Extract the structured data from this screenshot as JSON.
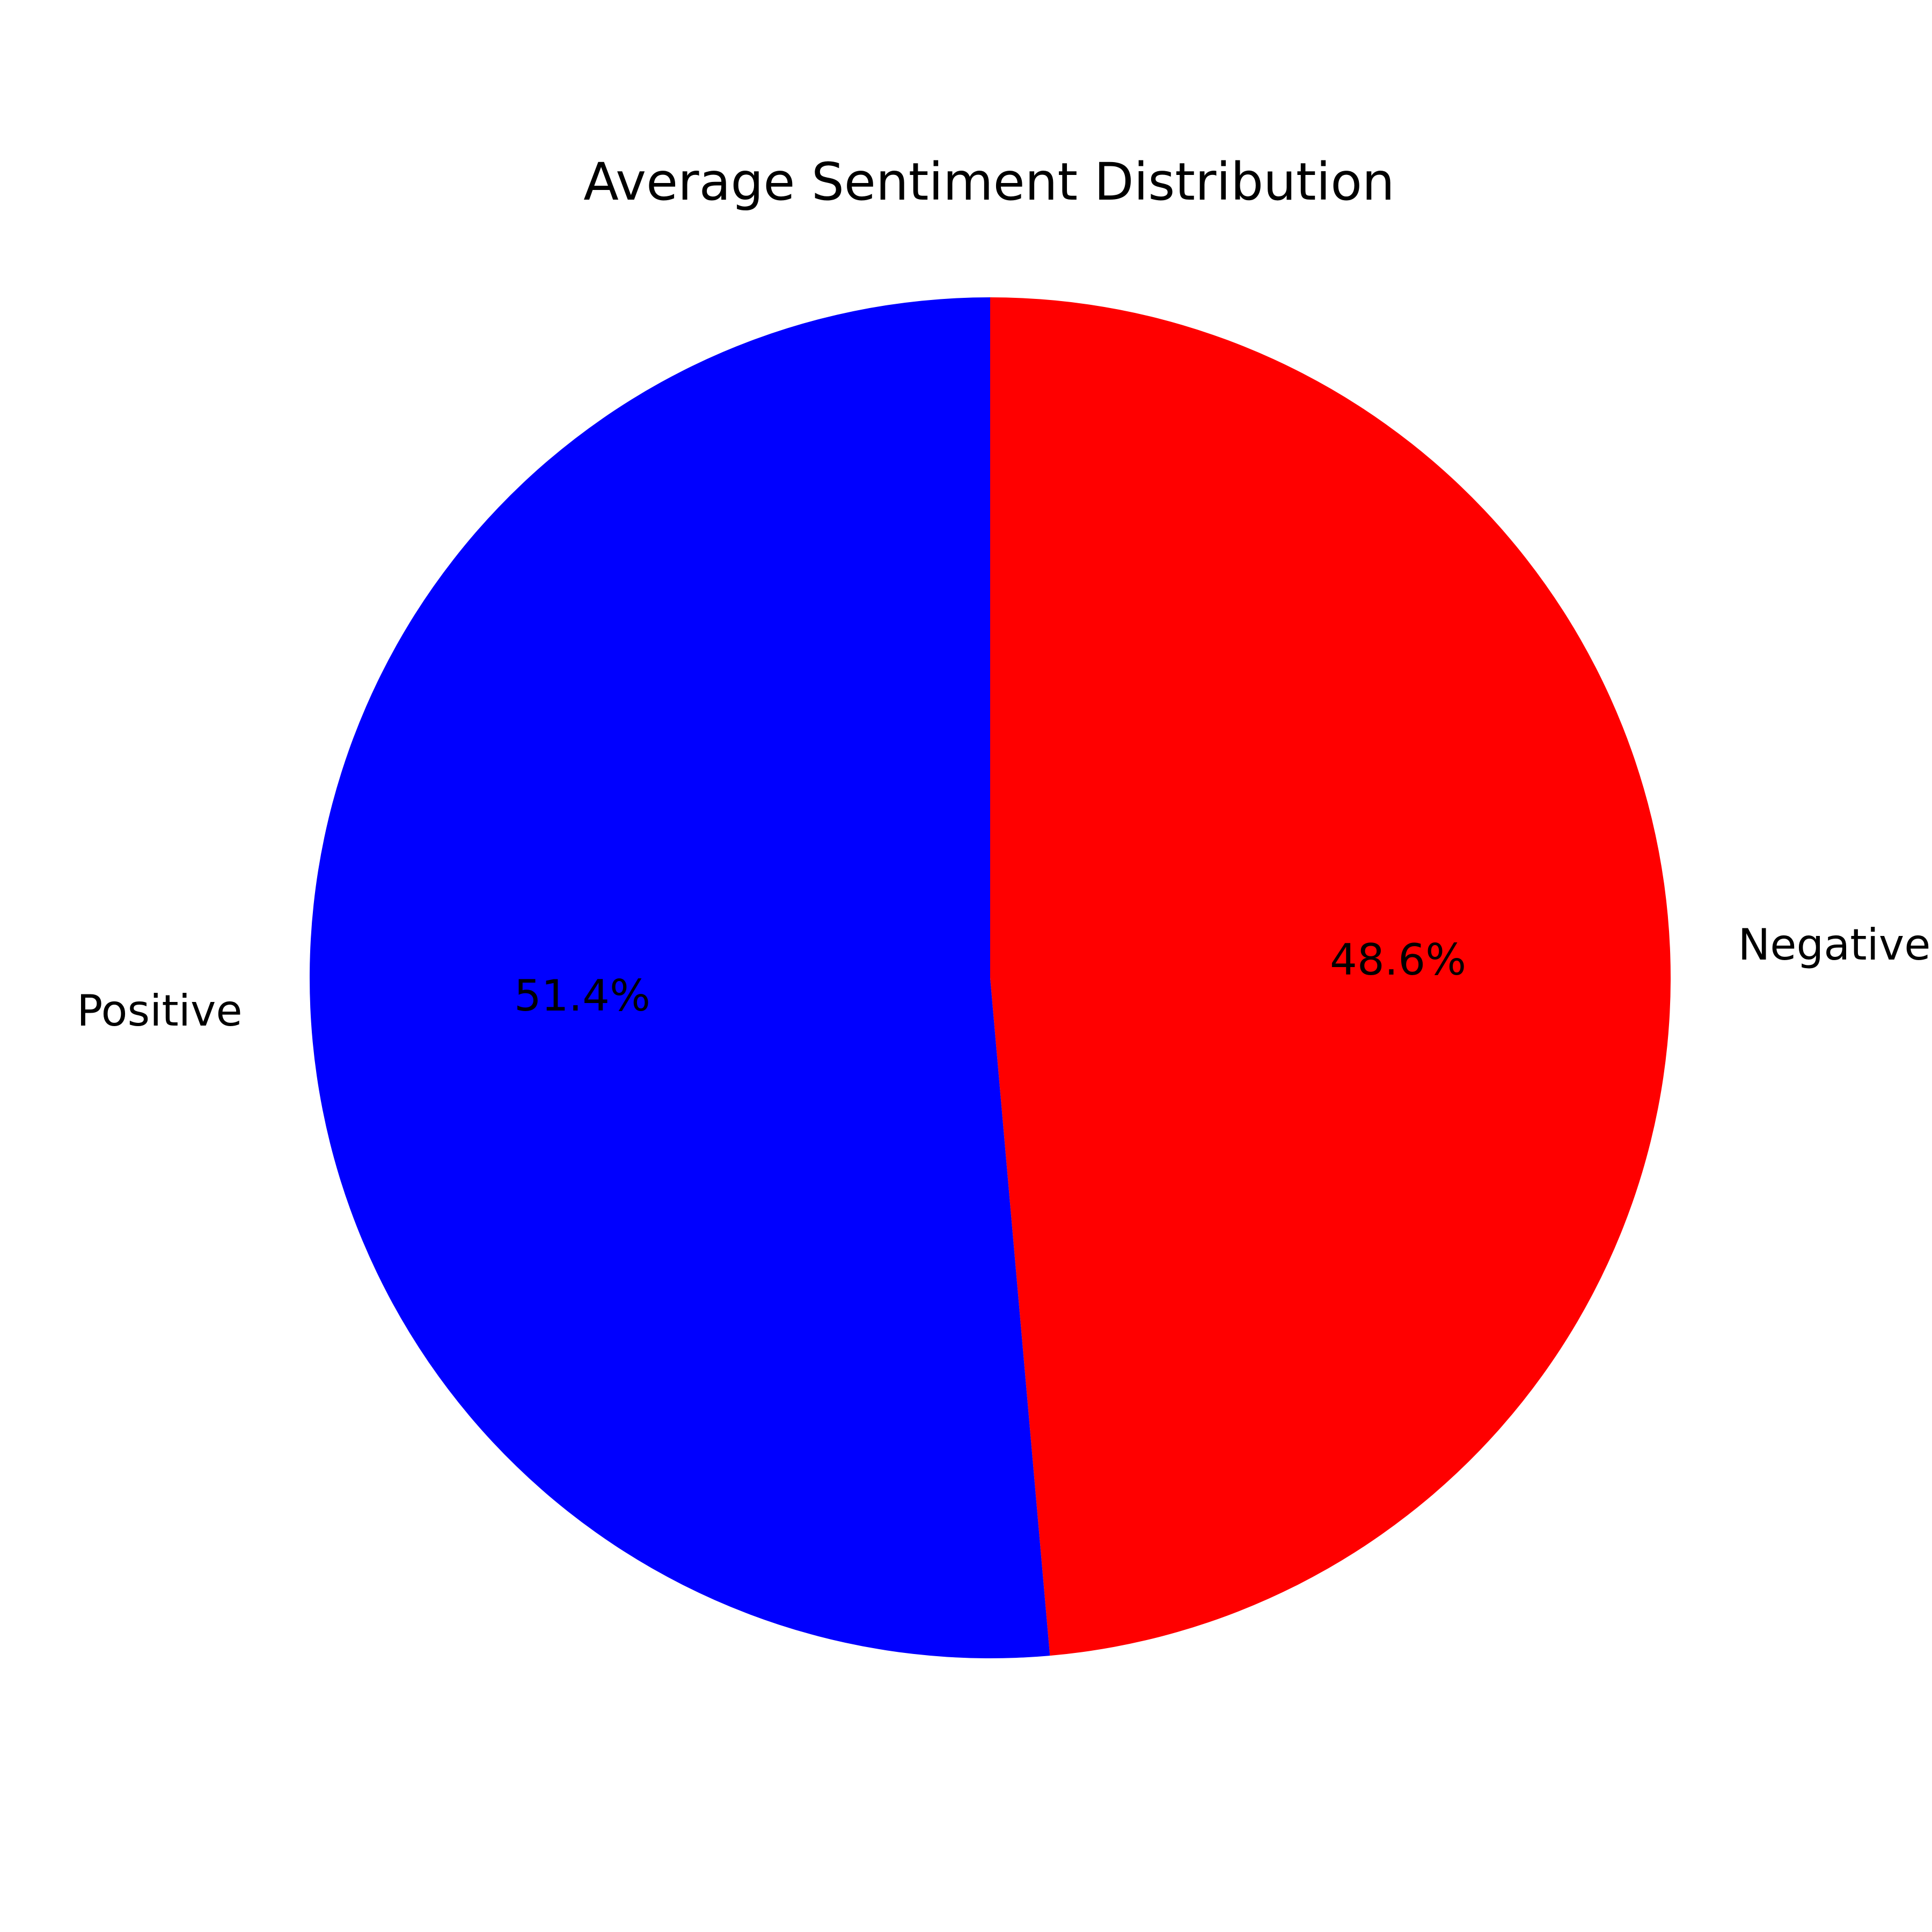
{
  "chart_data": {
    "type": "pie",
    "title": "Average Sentiment Distribution",
    "slices": [
      {
        "label": "Negative",
        "value": 48.6,
        "pct_label": "48.6%",
        "color": "#ff0000"
      },
      {
        "label": "Positive",
        "value": 51.4,
        "pct_label": "51.4%",
        "color": "#0000ff"
      }
    ],
    "start_angle_deg": 90,
    "direction": "clockwise"
  }
}
